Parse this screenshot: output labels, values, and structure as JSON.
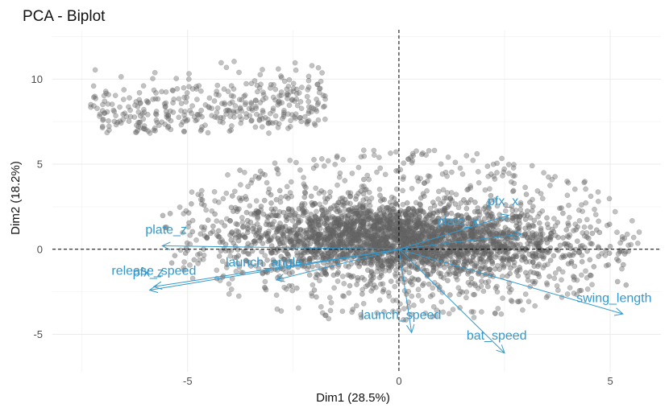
{
  "chart_data": {
    "type": "scatter",
    "title": "PCA - Biplot",
    "xlabel": "Dim1 (28.5%)",
    "ylabel": "Dim2 (18.2%)",
    "xlim": [
      -8.2,
      6.2
    ],
    "ylim": [
      -7.2,
      12.9
    ],
    "x_ticks": [
      -5,
      0,
      5
    ],
    "x_tick_labels": [
      "-5",
      "0",
      "5"
    ],
    "y_ticks": [
      -5,
      0,
      5,
      10
    ],
    "y_tick_labels": [
      "-5",
      "0",
      "5",
      "10"
    ],
    "grid": true,
    "reference_lines": {
      "x": 0,
      "y": 0,
      "style": "dashed"
    },
    "point_color": "#666666",
    "arrow_color": "#3399cc",
    "point_cloud": {
      "description_only": false,
      "main_body_center": [
        0,
        0.5
      ],
      "main_body_x_range": [
        -5,
        5
      ],
      "main_body_y_range": [
        -4,
        6
      ],
      "upper_cluster_x_range": [
        -7.5,
        -1.5
      ],
      "upper_cluster_y_range": [
        7,
        12
      ]
    },
    "variables": [
      {
        "name": "plate_z",
        "x": -5.6,
        "y": 0.2,
        "label_x": -6.0,
        "label_y": 0.9
      },
      {
        "name": "release_speed",
        "x": -5.8,
        "y": -2.2,
        "label_x": -6.8,
        "label_y": -1.5
      },
      {
        "name": "pfx_z",
        "x": -5.9,
        "y": -2.4,
        "label_x": -6.3,
        "label_y": -1.6
      },
      {
        "name": "launch_angle",
        "x": -2.9,
        "y": -1.8,
        "label_x": -4.1,
        "label_y": -1.0
      },
      {
        "name": "plate_x",
        "x": 2.9,
        "y": 0.9,
        "label_x": 0.9,
        "label_y": 1.4
      },
      {
        "name": "pfx_x",
        "x": 2.6,
        "y": 2.0,
        "label_x": 2.1,
        "label_y": 2.6
      },
      {
        "name": "launch_speed",
        "x": 0.3,
        "y": -4.9,
        "label_x": -0.9,
        "label_y": -4.1
      },
      {
        "name": "bat_speed",
        "x": 2.5,
        "y": -6.1,
        "label_x": 1.6,
        "label_y": -5.3
      },
      {
        "name": "swing_length",
        "x": 5.3,
        "y": -3.8,
        "label_x": 4.2,
        "label_y": -3.1
      }
    ]
  }
}
